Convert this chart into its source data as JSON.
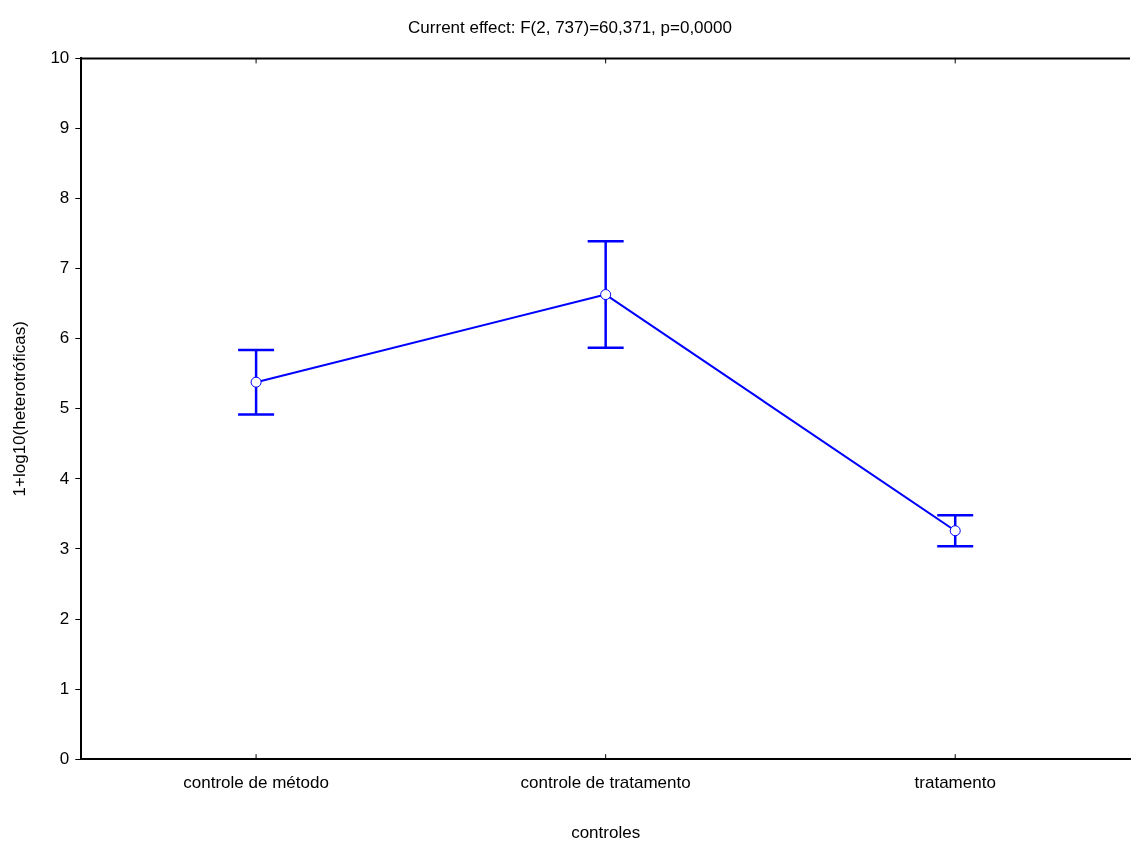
{
  "chart_data": {
    "type": "line",
    "title": "Current effect: F(2, 737)=60,371, p=0,0000",
    "xlabel": "controles",
    "ylabel": "1+log10(heterotróficas)",
    "categories": [
      "controle de método",
      "controle de tratamento",
      "tratamento"
    ],
    "series": [
      {
        "color": "#0000ff",
        "values": [
          5.38,
          6.63,
          3.26
        ],
        "errors": [
          0.46,
          0.76,
          0.22
        ]
      }
    ],
    "ylim": [
      0,
      10
    ],
    "yticks": [
      0,
      1,
      2,
      3,
      4,
      5,
      6,
      7,
      8,
      9,
      10
    ],
    "grid": false,
    "legend": false,
    "marker": "circle",
    "line_style": "solid"
  }
}
